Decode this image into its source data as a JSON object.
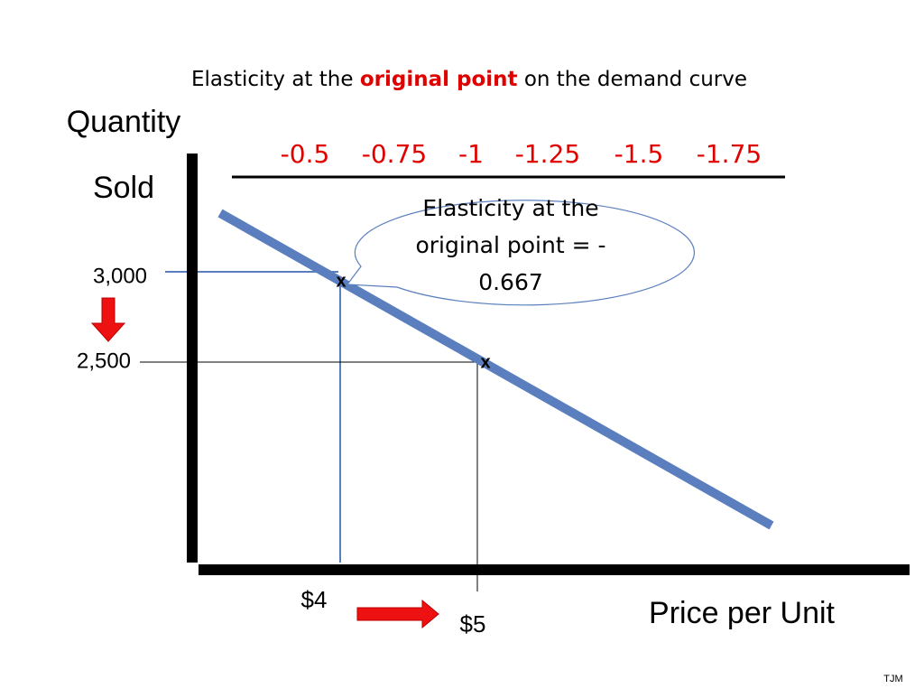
{
  "title": {
    "before": "Elasticity at the",
    "highlight": "original point",
    "after": "on the demand curve"
  },
  "y_axis_label": [
    "Quantity",
    "Sold"
  ],
  "x_axis_label": "Price per Unit",
  "elasticity_scale": [
    "-0.5",
    "-0.75",
    "-1",
    "-1.25",
    "-1.5",
    "-1.75"
  ],
  "callout": [
    "Elasticity at the",
    "original point = -",
    "0.667"
  ],
  "y_labels": [
    "3,000",
    "2,500"
  ],
  "x_labels": [
    "$4",
    "$5"
  ],
  "point_markers": [
    "x",
    "x"
  ],
  "footer": "TJM"
}
